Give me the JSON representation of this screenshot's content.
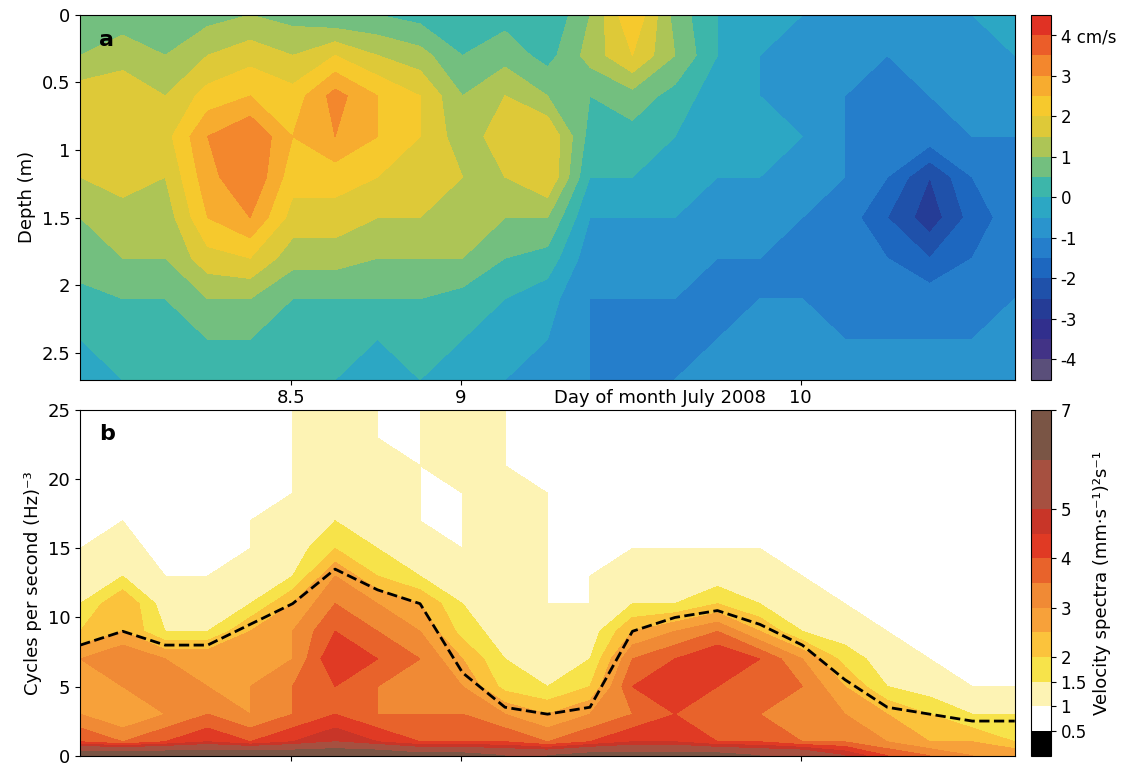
{
  "chart_data": [
    {
      "type": "contour",
      "annotations": [
        "a"
      ],
      "ylabel": "Depth (m)",
      "xlabel": "Day of month July 2008",
      "xlim": [
        7.88,
        10.63
      ],
      "xticks": [
        8.5,
        9,
        10
      ],
      "ylim": [
        2.7,
        0
      ],
      "yticks": [
        0,
        0.5,
        1,
        1.5,
        2,
        2.5
      ],
      "x": [
        7.88,
        8.005,
        8.13,
        8.255,
        8.38,
        8.505,
        8.63,
        8.755,
        8.88,
        9.005,
        9.13,
        9.255,
        9.38,
        9.505,
        9.63,
        9.755,
        9.88,
        10.005,
        10.13,
        10.255,
        10.38,
        10.505,
        10.63
      ],
      "y": [
        0,
        0.3,
        0.6,
        0.9,
        1.2,
        1.5,
        1.8,
        2.1,
        2.4,
        2.7
      ],
      "cells": [
        [
          0.5,
          0.8,
          0.5,
          0.8,
          1.0,
          0.8,
          0.5,
          0.5,
          0.3,
          0,
          0.3,
          0,
          1.0,
          2.5,
          0.8,
          0,
          -0.3,
          -0.5,
          -0.5,
          -0.8,
          -0.5,
          -0.5,
          -0.3
        ],
        [
          1.0,
          1.2,
          1.0,
          1.5,
          1.8,
          1.5,
          2.0,
          1.5,
          1.2,
          0.5,
          0.8,
          0.3,
          1.2,
          2.0,
          1.0,
          0,
          -0.5,
          -0.5,
          -0.8,
          -1.0,
          -0.8,
          -0.8,
          -0.5
        ],
        [
          1.8,
          2.0,
          1.5,
          2.2,
          2.5,
          2.2,
          3.2,
          2.5,
          2.0,
          1.0,
          1.5,
          1.0,
          0.5,
          0.8,
          0.3,
          -0.3,
          -0.5,
          -0.5,
          -1.0,
          -1.0,
          -1.0,
          -0.8,
          -0.8
        ],
        [
          2.0,
          2.0,
          1.8,
          3.0,
          3.5,
          2.5,
          3.0,
          2.5,
          2.0,
          1.2,
          1.8,
          2.0,
          0.3,
          0.3,
          0,
          -0.3,
          -0.3,
          -0.5,
          -1.0,
          -1.2,
          -1.2,
          -1.0,
          -1.0
        ],
        [
          1.5,
          1.8,
          1.5,
          2.8,
          3.5,
          2.2,
          2.2,
          2.0,
          2.0,
          1.5,
          1.5,
          2.0,
          0,
          0,
          -0.3,
          -0.5,
          -0.5,
          -0.8,
          -1.0,
          -1.5,
          -2.5,
          -1.5,
          -1.2
        ],
        [
          1.0,
          1.2,
          1.2,
          2.5,
          3.0,
          1.8,
          1.8,
          1.5,
          1.5,
          1.2,
          1.0,
          1.0,
          -0.5,
          -0.5,
          -0.5,
          -0.8,
          -0.8,
          -1.0,
          -1.2,
          -2.0,
          -2.8,
          -1.8,
          -1.2
        ],
        [
          0.8,
          1.0,
          1.0,
          1.8,
          2.0,
          1.2,
          1.2,
          1.0,
          1.0,
          1.0,
          0.5,
          0.3,
          -0.8,
          -0.8,
          -0.8,
          -1.0,
          -1.0,
          -1.0,
          -1.2,
          -1.5,
          -2.0,
          -1.5,
          -1.0
        ],
        [
          0.3,
          0.5,
          0.5,
          1.0,
          1.0,
          0.5,
          0.5,
          0.5,
          0.5,
          0.3,
          0,
          -0.3,
          -1.0,
          -1.0,
          -1.0,
          -1.0,
          -1.0,
          -1.0,
          -1.0,
          -1.2,
          -1.2,
          -1.0,
          -1.0
        ],
        [
          0,
          0.3,
          0.3,
          0.5,
          0.5,
          0.3,
          0.3,
          0,
          0.3,
          0,
          -0.3,
          -0.5,
          -1.0,
          -1.0,
          -1.0,
          -1.0,
          -0.8,
          -0.8,
          -1.0,
          -1.0,
          -1.0,
          -1.0,
          -0.8
        ],
        [
          -0.3,
          0,
          0,
          0.3,
          0.3,
          0,
          0,
          -0.3,
          0,
          -0.3,
          -0.5,
          -0.8,
          -1.0,
          -1.0,
          -1.0,
          -0.8,
          -0.8,
          -0.8,
          -0.8,
          -0.8,
          -0.8,
          -0.8,
          -0.8
        ]
      ],
      "colorbar": {
        "range": [
          -4.5,
          4.5
        ],
        "levels": [
          -4.5,
          -4,
          -3.5,
          -3,
          -2.5,
          -2,
          -1.5,
          -1,
          -0.5,
          0,
          0.5,
          1,
          1.5,
          2,
          2.5,
          3,
          3.5,
          4,
          4.5
        ],
        "ticks": [
          -4,
          -3,
          -2,
          -1,
          0,
          1,
          2,
          3,
          {
            "value": 4,
            "label": "4 cm/s"
          }
        ]
      }
    },
    {
      "type": "contour",
      "annotations": [
        "b"
      ],
      "ylabel": "Cycles per second (Hz)⁻³",
      "tick_labels": "y",
      "xlim": [
        7.88,
        10.63
      ],
      "xticks": [
        8.5,
        9,
        10
      ],
      "ylim": [
        0,
        25
      ],
      "yticks": [
        0,
        5,
        10,
        15,
        20,
        25
      ],
      "x": [
        7.88,
        8.005,
        8.13,
        8.255,
        8.38,
        8.505,
        8.63,
        8.755,
        8.88,
        9.005,
        9.13,
        9.255,
        9.38,
        9.505,
        9.63,
        9.755,
        9.88,
        10.005,
        10.13,
        10.255,
        10.38,
        10.505,
        10.63
      ],
      "y": [
        0,
        1,
        3,
        5,
        7,
        9,
        11,
        13,
        15,
        17,
        19,
        21,
        23,
        25
      ],
      "cells": [
        [
          7,
          7,
          7,
          7,
          7,
          7,
          7,
          7,
          6.5,
          6.5,
          6,
          6,
          6.5,
          6.5,
          6.5,
          6.5,
          6,
          6,
          5,
          4,
          3.5,
          3,
          3
        ],
        [
          4,
          3.5,
          4,
          4.5,
          4,
          4.5,
          5,
          4.5,
          4,
          4,
          4,
          3.5,
          4,
          4.5,
          4.5,
          4,
          4,
          3.5,
          3.5,
          3,
          2.5,
          2.5,
          2
        ],
        [
          3,
          2.5,
          3,
          3.5,
          3,
          3.5,
          4,
          3.5,
          3.5,
          3.5,
          3,
          2.5,
          3,
          3.5,
          4,
          4,
          3.5,
          3.5,
          3,
          2.5,
          2,
          1.5,
          1.5
        ],
        [
          3,
          3,
          3.5,
          3,
          3,
          3.5,
          4,
          3.5,
          3.5,
          3,
          1.8,
          1.5,
          2,
          4,
          4.5,
          4,
          4,
          3.5,
          2.5,
          1.5,
          1.2,
          1,
          1
        ],
        [
          3,
          3.5,
          3,
          3,
          3,
          3,
          4.5,
          4,
          3.5,
          2.5,
          1.5,
          1.2,
          1.5,
          3.5,
          4,
          4.5,
          4,
          3,
          1.8,
          1.2,
          1,
          0.8,
          0.8
        ],
        [
          2,
          2.5,
          1.5,
          1.5,
          2.5,
          3,
          4,
          3.5,
          3,
          1.8,
          1.2,
          1.2,
          1.2,
          2.5,
          3,
          3.5,
          2.5,
          1.5,
          1.2,
          1,
          0.8,
          0.8,
          0.8
        ],
        [
          1.5,
          2.5,
          1.2,
          1.2,
          1.5,
          2.5,
          3.5,
          3,
          2.5,
          1.5,
          1.2,
          1,
          1,
          1.5,
          1.5,
          2,
          1.5,
          1.2,
          1,
          0.8,
          0.8,
          0.7,
          0.7
        ],
        [
          1.2,
          1.5,
          1,
          1,
          1.2,
          1.5,
          3,
          2,
          1.5,
          1.2,
          1.2,
          1,
          1,
          1.2,
          1.2,
          1.2,
          1.2,
          1,
          0.8,
          0.8,
          0.7,
          0.7,
          0.7
        ],
        [
          1,
          1.2,
          0.8,
          1,
          1,
          1.2,
          2,
          1.5,
          1.2,
          1,
          1.2,
          1,
          1,
          1,
          1,
          1,
          1,
          0.8,
          0.8,
          0.7,
          0.7,
          0.7,
          0.7
        ],
        [
          0.8,
          1,
          0.8,
          0.8,
          1,
          1.2,
          1.5,
          1.2,
          1,
          1,
          1.2,
          1,
          0.8,
          1,
          1,
          1,
          0.8,
          0.8,
          0.7,
          0.7,
          0.7,
          0.7,
          0.7
        ],
        [
          0.8,
          0.8,
          0.8,
          0.8,
          1,
          1,
          1.2,
          1.2,
          1,
          1,
          1.2,
          1,
          0.8,
          1,
          0.8,
          0.8,
          0.8,
          0.7,
          0.7,
          0.7,
          0.7,
          0.7,
          0.7
        ],
        [
          0.8,
          0.8,
          0.8,
          0.8,
          1,
          1,
          1.2,
          1.2,
          1,
          1.2,
          1,
          0.8,
          0.8,
          0.8,
          0.8,
          0.8,
          0.7,
          0.7,
          0.7,
          0.7,
          0.7,
          0.7,
          0.7
        ],
        [
          0.8,
          0.8,
          0.7,
          0.8,
          0.8,
          1,
          1.2,
          1,
          1,
          1.2,
          1,
          0.8,
          0.8,
          0.8,
          0.8,
          0.7,
          0.7,
          0.7,
          0.7,
          0.7,
          0.7,
          0.7,
          0.7
        ],
        [
          0.8,
          0.7,
          0.7,
          0.8,
          0.8,
          1,
          1.2,
          1,
          1,
          1.2,
          1,
          0.8,
          0.8,
          0.8,
          0.7,
          0.7,
          0.7,
          0.7,
          0.7,
          0.7,
          0.7,
          0.7,
          0.7
        ]
      ],
      "colorbar": {
        "range": [
          0,
          7
        ],
        "levels": [
          0,
          0.5,
          1,
          1.5,
          2,
          2.5,
          3,
          3.5,
          4,
          4.5,
          5,
          6,
          7
        ],
        "ticks": [
          0.5,
          1,
          1.5,
          2,
          3,
          4,
          5,
          7
        ],
        "label": "Velocity spectra (mm·s⁻¹)²s⁻¹"
      },
      "series": [
        {
          "type": "line",
          "line_style": "dashed",
          "color": "#000000",
          "x": [
            7.88,
            8.005,
            8.13,
            8.255,
            8.38,
            8.505,
            8.63,
            8.755,
            8.88,
            9.005,
            9.13,
            9.255,
            9.38,
            9.505,
            9.63,
            9.755,
            9.88,
            10.005,
            10.13,
            10.255,
            10.38,
            10.505,
            10.63
          ],
          "values": [
            8,
            9,
            8,
            8,
            9.5,
            11,
            13.5,
            12,
            11,
            6,
            3.5,
            3,
            3.5,
            9,
            10,
            10.5,
            9.5,
            8,
            5.5,
            3.5,
            3,
            2.5,
            2.5
          ]
        }
      ]
    }
  ]
}
